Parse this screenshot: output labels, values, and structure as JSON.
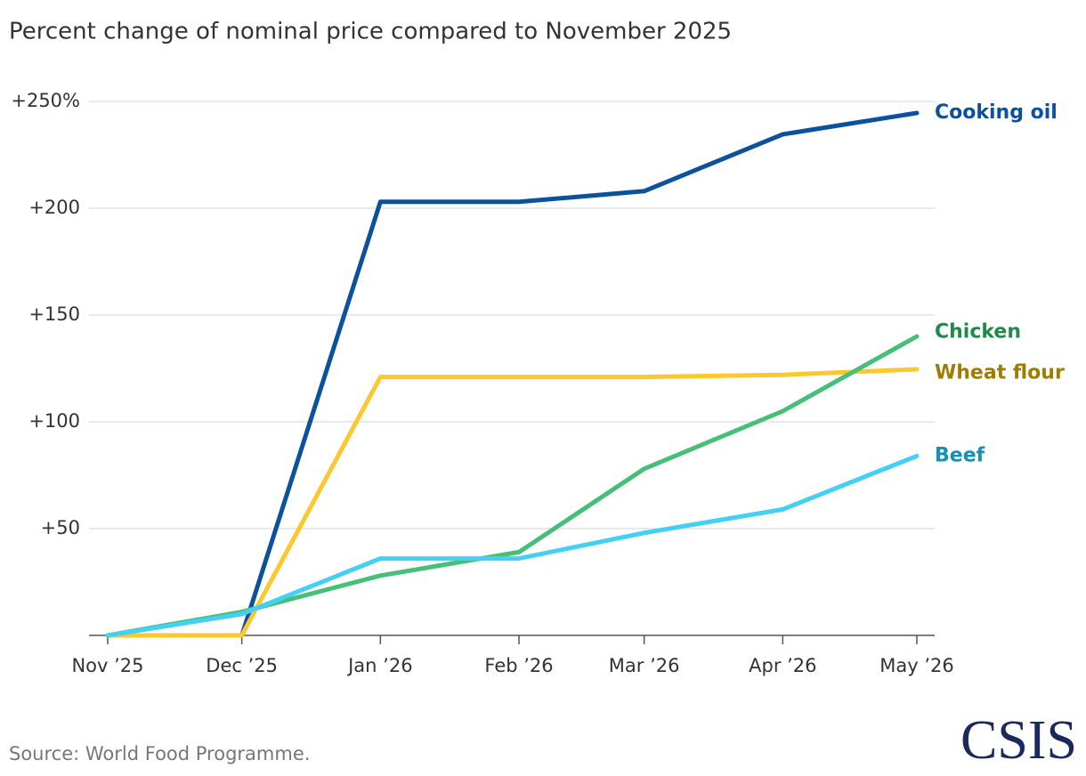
{
  "chart_data": {
    "type": "line",
    "title": "Percent change of nominal price compared to November 2025",
    "source": "Source: World Food Programme.",
    "logo": "CSIS",
    "x": [
      "2025-11",
      "2025-12",
      "2026-01",
      "2026-02",
      "2026-03",
      "2026-04",
      "2026-05"
    ],
    "xlim": [
      "2025-11",
      "2026-05"
    ],
    "xticks": [
      {
        "value": "2025-11",
        "label": "Nov ’25"
      },
      {
        "value": "2025-12",
        "label": "Dec ’25"
      },
      {
        "value": "2026-01",
        "label": "Jan ’26"
      },
      {
        "value": "2026-02",
        "label": "Feb ’26"
      },
      {
        "value": "2026-03",
        "label": "Mar ’26"
      },
      {
        "value": "2026-04",
        "label": "Apr ’26"
      },
      {
        "value": "2026-05",
        "label": "May ’26"
      }
    ],
    "ylim": [
      0,
      250
    ],
    "yticks": [
      {
        "value": 50,
        "label": "+50"
      },
      {
        "value": 100,
        "label": "+100"
      },
      {
        "value": 150,
        "label": "+150"
      },
      {
        "value": 200,
        "label": "+200"
      },
      {
        "value": 250,
        "label": "+250%"
      }
    ],
    "grid": true,
    "series": [
      {
        "name": "Cooking oil",
        "color": "#0b519c",
        "label_color": "#0b519c",
        "values": [
          0,
          0,
          203,
          203,
          208,
          234.6,
          244.6
        ]
      },
      {
        "name": "Wheat flour",
        "color": "#fdc82f",
        "label_color": "#a07c00",
        "values": [
          0,
          0,
          121,
          121,
          121,
          122,
          124.6
        ]
      },
      {
        "name": "Chicken",
        "color": "#47bf78",
        "label_color": "#1f8a4c",
        "values": [
          0,
          11,
          28,
          39,
          78,
          105,
          140
        ]
      },
      {
        "name": "Beef",
        "color": "#44d0f5",
        "label_color": "#1591b5",
        "values": [
          0,
          10,
          36,
          36,
          48,
          59,
          84
        ]
      }
    ]
  }
}
